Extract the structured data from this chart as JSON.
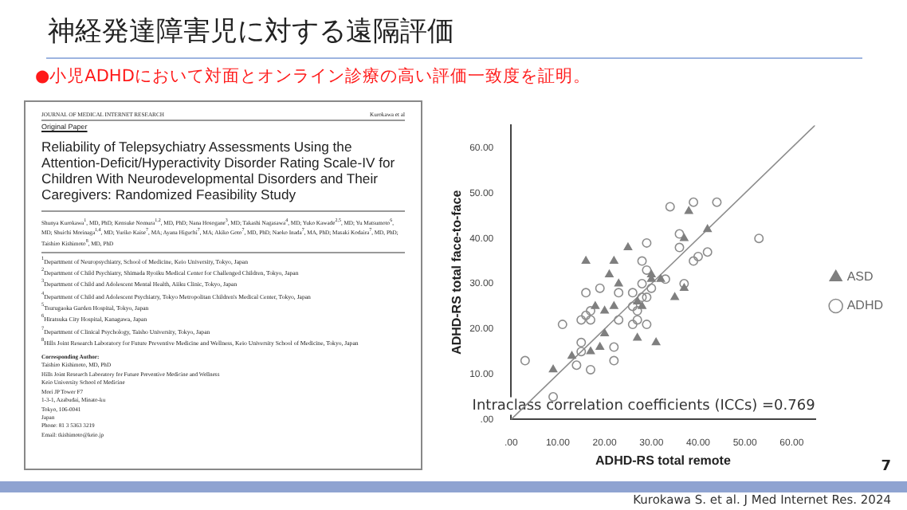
{
  "chart_data": {
    "type": "scatter",
    "title": "神経発達障害児に対する遠隔評価",
    "subtitle": "●小児ADHDにおいて対面とオンライン診療の高い評価一致度を証明。",
    "xlabel": "ADHD-RS total remote",
    "ylabel": "ADHD-RS total face-to-face",
    "xlim": [
      0,
      65
    ],
    "ylim": [
      0,
      65
    ],
    "xticks": [
      {
        "value": 0,
        "label": ".00"
      },
      {
        "value": 10,
        "label": "10.00"
      },
      {
        "value": 20,
        "label": "20.00"
      },
      {
        "value": 30,
        "label": "30.00"
      },
      {
        "value": 40,
        "label": "40.00"
      },
      {
        "value": 50,
        "label": "50.00"
      },
      {
        "value": 60,
        "label": "60.00"
      }
    ],
    "yticks": [
      {
        "value": 0,
        "label": ".00"
      },
      {
        "value": 10,
        "label": "10.00"
      },
      {
        "value": 20,
        "label": "20.00"
      },
      {
        "value": 30,
        "label": "30.00"
      },
      {
        "value": 40,
        "label": "40.00"
      },
      {
        "value": 50,
        "label": "50.00"
      },
      {
        "value": 60,
        "label": "60.00"
      }
    ],
    "grid": false,
    "legend": "right",
    "series": [
      {
        "name": "ASD",
        "color": "#7f7f7f",
        "marker": "triangle",
        "x": [
          9,
          13,
          17,
          18,
          16,
          20,
          20,
          19,
          22,
          21,
          22,
          23,
          25,
          27,
          28,
          27,
          30,
          30,
          31,
          32,
          35,
          37,
          37,
          38,
          42
        ],
        "values": [
          11,
          14,
          15,
          25,
          35,
          24,
          19,
          16,
          35,
          32,
          25,
          30,
          38,
          18,
          25,
          26,
          32,
          31,
          17,
          31,
          27,
          40,
          29,
          46,
          42
        ]
      },
      {
        "name": "ADHD",
        "color": "#8c8c8c",
        "marker": "circle",
        "x": [
          3,
          11,
          9,
          15,
          15,
          15,
          16,
          16,
          17,
          17,
          17,
          14,
          19,
          22,
          22,
          23,
          23,
          26,
          26,
          27,
          27,
          26,
          28,
          28,
          28,
          29,
          29,
          29,
          29,
          30,
          33,
          34,
          36,
          36,
          37,
          39,
          40,
          39,
          42,
          44,
          53
        ],
        "values": [
          13,
          21,
          5,
          17,
          15,
          22,
          28,
          23,
          24,
          22,
          11,
          12,
          29,
          16,
          13,
          28,
          22,
          28,
          21,
          22,
          24,
          25,
          35,
          30,
          27,
          33,
          27,
          21,
          39,
          29,
          31,
          47,
          38,
          41,
          30,
          35,
          36,
          48,
          37,
          48,
          40
        ]
      },
      {
        "type": "line",
        "color": "#8c8c8c",
        "marker": "none",
        "x": [
          0,
          65
        ],
        "values": [
          0,
          65
        ]
      }
    ],
    "annotations": [
      "Intraclass correlation coefficients (ICCs) =0.769",
      "JOURNAL OF MEDICAL INTERNET RESEARCH",
      "Kurokawa et al",
      "Original Paper",
      "Reliability of Telepsychiatry Assessments Using the Attention-Deficit/Hyperactivity Disorder Rating Scale-IV for Children With Neurodevelopmental Disorders and Their Caregivers: Randomized Feasibility Study",
      "Shunya Kurokawa$^{1}$, MD, PhD; Kensuke Nomura$^{1,2}$, MD, PhD; Nana Hosogane$^{3}$, MD; Takashi Nagasawa$^{4}$, MD; Yuko Kawade$^{2,5}$, MD; Yu Matsumoto$^{6}$, MD; Shuichi Morinaga$^{1,4}$, MD; Yuriko Kaise$^{7}$, MA; Ayana Higuchi$^{7}$, MA; Akiko Goto$^{7}$, MD, PhD; Naoko Inada$^{7}$, MA, PhD; Masaki Kodaira$^{7}$, MD, PhD; Taishiro Kishimoto$^{8}$, MD, PhD",
      "$^{1}$Department of Neuropsychiatry, School of Medicine, Keio University, Tokyo, Japan",
      "$^{2}$Department of Child Psychiatry, Shimada Ryoiku Medical Center for Challenged Children, Tokyo, Japan",
      "$^{3}$Department of Child and Adolescent Mental Health, Aiiku Clinic, Tokyo, Japan",
      "$^{4}$Department of Child and Adolescent Psychiatry, Tokyo Metropolitan Children's Medical Center, Tokyo, Japan",
      "$^{5}$Tsurugaoka Garden Hospital, Tokyo, Japan",
      "$^{6}$Hiratsuka City Hospital, Kanagawa, Japan",
      "$^{7}$Department of Clinical Psychology, Taisho University, Tokyo, Japan",
      "$^{8}$Hills Joint Research Laboratory for Future Preventive Medicine and Wellness, Keio University School of Medicine, Tokyo, Japan",
      "Corresponding Author:",
      "Taishiro Kishimoto, MD, PhD",
      "Hills Joint Research Laboratory for Future Preventive Medicine and Wellness",
      "Keio University School of Medicine",
      "Mori JP Tower F7",
      "1-3-1, Azabudai, Minato-ku",
      "Tokyo, 106-0041",
      "Japan",
      "Phone: 81 3 5363 3219",
      "Email: tkishimoto@keio.jp",
      "Kurokawa S. et al. J Med Internet Res. 2024",
      "7"
    ]
  }
}
